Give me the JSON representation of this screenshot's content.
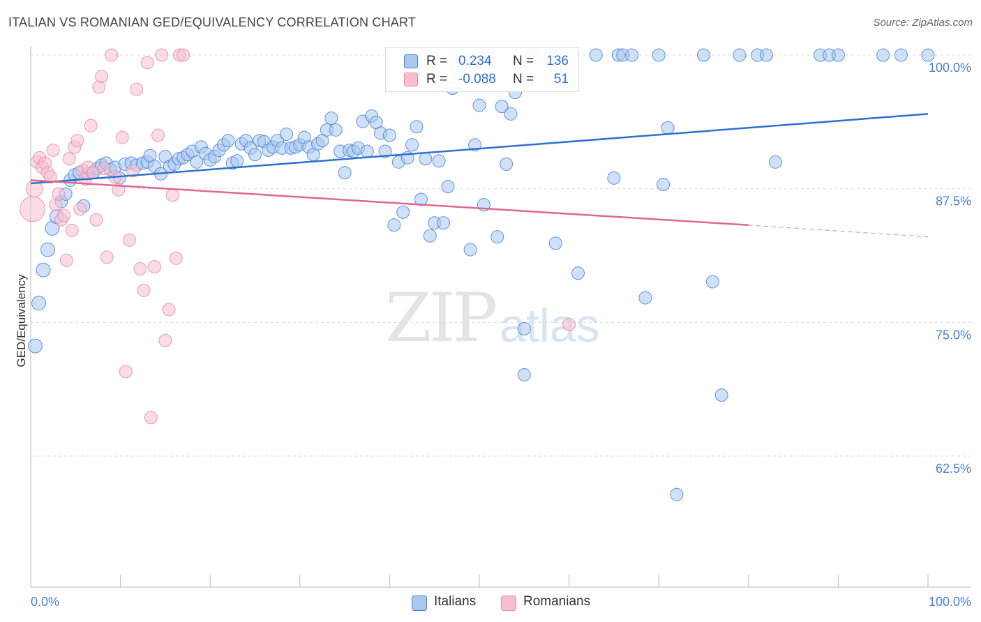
{
  "title": "ITALIAN VS ROMANIAN GED/EQUIVALENCY CORRELATION CHART",
  "source": "Source: ZipAtlas.com",
  "watermark": {
    "zip": "ZIP",
    "atlas": "atlas"
  },
  "colors": {
    "blue": "#4a7fd4",
    "blue_fill": "#a8c8f0",
    "blue_line": "#2e6fd0",
    "pink": "#e889a8",
    "pink_fill": "#f6bfd0",
    "pink_line": "#e0668f",
    "axis_text": "#4a7fd4",
    "grid": "#dddddd"
  },
  "legend": {
    "rows": [
      {
        "r_label": "R =",
        "r_value": "0.234",
        "n_label": "N =",
        "n_value": "136",
        "color": "#4a7fd4"
      },
      {
        "r_label": "R =",
        "r_value": "-0.088",
        "n_label": "N =",
        "n_value": "51",
        "color": "#e0668f"
      }
    ]
  },
  "bottom_legend": [
    {
      "label": "Italians"
    },
    {
      "label": "Romanians"
    }
  ],
  "chart_data": {
    "type": "scatter",
    "title": "ITALIAN VS ROMANIAN GED/EQUIVALENCY CORRELATION CHART",
    "xlabel": "",
    "ylabel": "GED/Equivalency",
    "xlim": [
      0,
      100
    ],
    "ylim": [
      52.5,
      101.5
    ],
    "x_tick_labels": [
      "0.0%",
      "100.0%"
    ],
    "y_ticks": [
      100,
      87.5,
      75,
      62.5
    ],
    "y_tick_labels": [
      "100.0%",
      "87.5%",
      "75.0%",
      "62.5%"
    ],
    "grid": true,
    "legend_position": "top-center",
    "series": [
      {
        "name": "Italians",
        "color": "#4a7fd4",
        "trend": {
          "x": [
            0,
            100
          ],
          "y": [
            88.0,
            94.5
          ],
          "style": "solid"
        },
        "points": [
          [
            0.5,
            72.8
          ],
          [
            0.9,
            76.8
          ],
          [
            1.4,
            79.9
          ],
          [
            1.9,
            81.8
          ],
          [
            2.4,
            83.8
          ],
          [
            2.9,
            84.9
          ],
          [
            3.4,
            86.3
          ],
          [
            3.9,
            87.0
          ],
          [
            4.4,
            88.3
          ],
          [
            4.9,
            88.8
          ],
          [
            5.4,
            89.0
          ],
          [
            5.9,
            85.9
          ],
          [
            6.4,
            88.9
          ],
          [
            6.9,
            89.0
          ],
          [
            7.4,
            89.4
          ],
          [
            7.9,
            89.7
          ],
          [
            8.4,
            89.9
          ],
          [
            8.9,
            89.3
          ],
          [
            9.4,
            89.5
          ],
          [
            9.9,
            88.5
          ],
          [
            10.5,
            89.8
          ],
          [
            11.2,
            89.9
          ],
          [
            11.8,
            89.7
          ],
          [
            12.5,
            89.9
          ],
          [
            13.0,
            90.0
          ],
          [
            13.3,
            90.6
          ],
          [
            13.8,
            89.6
          ],
          [
            14.5,
            88.9
          ],
          [
            15.0,
            90.5
          ],
          [
            15.5,
            89.6
          ],
          [
            16.0,
            89.8
          ],
          [
            16.5,
            90.3
          ],
          [
            17.0,
            90.4
          ],
          [
            17.5,
            90.7
          ],
          [
            18.0,
            91.0
          ],
          [
            18.5,
            90.0
          ],
          [
            19.0,
            91.4
          ],
          [
            19.5,
            90.8
          ],
          [
            20.0,
            90.2
          ],
          [
            20.5,
            90.5
          ],
          [
            21.0,
            91.1
          ],
          [
            21.5,
            91.6
          ],
          [
            22.0,
            92.0
          ],
          [
            22.5,
            89.9
          ],
          [
            23.0,
            90.1
          ],
          [
            23.5,
            91.7
          ],
          [
            24.0,
            92.0
          ],
          [
            24.5,
            91.3
          ],
          [
            25.0,
            90.7
          ],
          [
            25.5,
            92.0
          ],
          [
            26.0,
            91.9
          ],
          [
            26.5,
            91.1
          ],
          [
            27.0,
            91.4
          ],
          [
            27.5,
            92.0
          ],
          [
            28.0,
            91.3
          ],
          [
            28.5,
            92.6
          ],
          [
            29.0,
            91.3
          ],
          [
            29.5,
            91.4
          ],
          [
            30.0,
            91.6
          ],
          [
            30.5,
            92.3
          ],
          [
            31.0,
            91.4
          ],
          [
            31.5,
            90.7
          ],
          [
            32.0,
            91.7
          ],
          [
            32.5,
            92.0
          ],
          [
            33.0,
            93.0
          ],
          [
            33.5,
            94.1
          ],
          [
            34.0,
            93.0
          ],
          [
            34.5,
            91.0
          ],
          [
            35.0,
            89.0
          ],
          [
            35.5,
            91.1
          ],
          [
            36.0,
            91.0
          ],
          [
            36.5,
            91.3
          ],
          [
            37.0,
            93.8
          ],
          [
            37.5,
            91.0
          ],
          [
            38.0,
            94.3
          ],
          [
            38.5,
            93.7
          ],
          [
            39.0,
            92.7
          ],
          [
            39.5,
            91.0
          ],
          [
            40.0,
            92.5
          ],
          [
            40.5,
            84.1
          ],
          [
            41.0,
            90.0
          ],
          [
            41.5,
            85.3
          ],
          [
            42.0,
            90.4
          ],
          [
            42.5,
            91.6
          ],
          [
            43.0,
            93.3
          ],
          [
            43.5,
            86.5
          ],
          [
            44.0,
            90.3
          ],
          [
            44.5,
            83.1
          ],
          [
            45.0,
            84.3
          ],
          [
            45.5,
            90.1
          ],
          [
            46.0,
            84.3
          ],
          [
            46.5,
            87.7
          ],
          [
            47.0,
            96.9
          ],
          [
            47.5,
            98.8
          ],
          [
            48.0,
            100.0
          ],
          [
            49.0,
            81.8
          ],
          [
            49.5,
            91.6
          ],
          [
            50.0,
            95.3
          ],
          [
            50.5,
            86.0
          ],
          [
            51.0,
            100.0
          ],
          [
            52.0,
            83.0
          ],
          [
            52.5,
            95.2
          ],
          [
            53.0,
            89.8
          ],
          [
            53.5,
            94.5
          ],
          [
            54.0,
            96.5
          ],
          [
            54.5,
            99.0
          ],
          [
            55.0,
            74.4
          ],
          [
            55.0,
            70.1
          ],
          [
            56.0,
            100.0
          ],
          [
            58.0,
            100.0
          ],
          [
            58.5,
            82.4
          ],
          [
            59.0,
            100.0
          ],
          [
            61.0,
            79.6
          ],
          [
            63.0,
            100.0
          ],
          [
            65.0,
            88.5
          ],
          [
            65.5,
            100.0
          ],
          [
            66.0,
            100.0
          ],
          [
            67.0,
            100.0
          ],
          [
            68.5,
            77.3
          ],
          [
            70.0,
            100.0
          ],
          [
            70.5,
            87.9
          ],
          [
            71.0,
            93.2
          ],
          [
            72.0,
            58.9
          ],
          [
            75.0,
            100.0
          ],
          [
            76.0,
            78.8
          ],
          [
            77.0,
            68.2
          ],
          [
            79.0,
            100.0
          ],
          [
            81.0,
            100.0
          ],
          [
            82.0,
            100.0
          ],
          [
            83.0,
            90.0
          ],
          [
            88.0,
            100.0
          ],
          [
            89.0,
            100.0
          ],
          [
            90.0,
            100.0
          ],
          [
            95.0,
            100.0
          ],
          [
            100.0,
            100.0
          ],
          [
            97.0,
            100.0
          ]
        ]
      },
      {
        "name": "Romanians",
        "color": "#e0668f",
        "trend": {
          "x": [
            0,
            80
          ],
          "y": [
            88.3,
            84.1
          ],
          "style": "solid",
          "dashed_extension_to": [
            100,
            83.0
          ]
        },
        "points": [
          [
            0.2,
            85.6
          ],
          [
            0.4,
            87.5
          ],
          [
            0.7,
            90.0
          ],
          [
            1.0,
            90.4
          ],
          [
            1.3,
            89.5
          ],
          [
            1.6,
            89.9
          ],
          [
            1.9,
            89.0
          ],
          [
            2.2,
            88.6
          ],
          [
            2.5,
            91.1
          ],
          [
            2.8,
            86.0
          ],
          [
            3.1,
            87.0
          ],
          [
            3.4,
            84.6
          ],
          [
            3.7,
            85.0
          ],
          [
            4.0,
            80.8
          ],
          [
            4.3,
            90.3
          ],
          [
            4.6,
            83.6
          ],
          [
            4.9,
            91.4
          ],
          [
            5.2,
            92.0
          ],
          [
            5.5,
            85.6
          ],
          [
            5.8,
            89.2
          ],
          [
            6.1,
            88.4
          ],
          [
            6.4,
            89.5
          ],
          [
            6.7,
            93.4
          ],
          [
            7.0,
            89.0
          ],
          [
            7.3,
            84.6
          ],
          [
            7.6,
            97.0
          ],
          [
            7.9,
            98.0
          ],
          [
            8.2,
            89.4
          ],
          [
            8.5,
            81.1
          ],
          [
            9.0,
            100.0
          ],
          [
            9.4,
            88.6
          ],
          [
            9.8,
            87.4
          ],
          [
            10.2,
            92.3
          ],
          [
            10.6,
            70.4
          ],
          [
            11.0,
            82.7
          ],
          [
            11.4,
            89.2
          ],
          [
            11.8,
            96.8
          ],
          [
            12.2,
            80.0
          ],
          [
            12.6,
            78.0
          ],
          [
            13.0,
            99.3
          ],
          [
            13.4,
            66.1
          ],
          [
            13.8,
            80.2
          ],
          [
            14.2,
            92.5
          ],
          [
            14.6,
            100.0
          ],
          [
            15.0,
            73.3
          ],
          [
            15.4,
            76.2
          ],
          [
            15.8,
            86.9
          ],
          [
            16.2,
            81.0
          ],
          [
            16.6,
            100.0
          ],
          [
            17.0,
            100.0
          ],
          [
            60.0,
            74.8
          ]
        ]
      }
    ]
  }
}
